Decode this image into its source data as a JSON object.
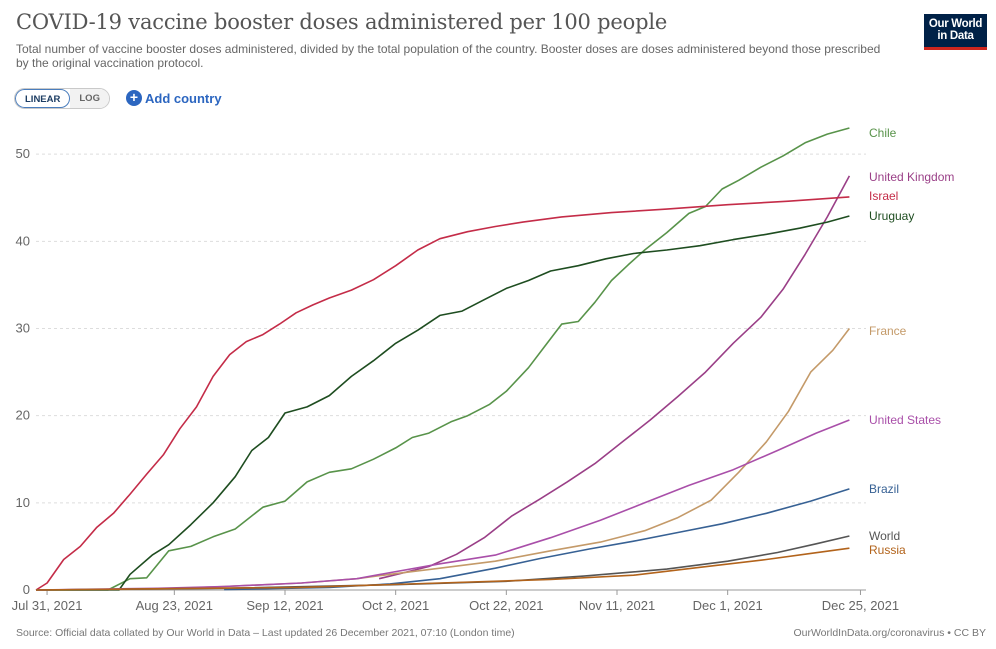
{
  "title": "COVID-19 vaccine booster doses administered per 100 people",
  "subtitle": "Total number of vaccine booster doses administered, divided by the total population of the country. Booster doses are doses administered beyond those prescribed by the original vaccination protocol.",
  "logo": {
    "line1": "Our World",
    "line2": "in Data"
  },
  "controls": {
    "linear_label": "LINEAR",
    "log_label": "LOG",
    "add_country_label": "Add country",
    "add_icon": "plus-circle-icon"
  },
  "footer": {
    "source": "Source: Official data collated by Our World in Data – Last updated 26 December 2021, 07:10 (London time)",
    "license": "OurWorldInData.org/coronavirus • CC BY"
  },
  "colors": {
    "grid": "#dddddd",
    "axis_text": "#666666",
    "brand": "#002147",
    "accent": "#ce261e"
  },
  "chart_data": {
    "type": "line",
    "title": "COVID-19 vaccine booster doses administered per 100 people",
    "xlabel": "",
    "ylabel": "",
    "xlim": [
      "2021-07-29",
      "2021-12-26"
    ],
    "ylim": [
      0,
      53
    ],
    "yticks": [
      0,
      10,
      20,
      30,
      40,
      50
    ],
    "xticks": [
      {
        "date": "2021-07-31",
        "label": "Jul 31, 2021"
      },
      {
        "date": "2021-08-23",
        "label": "Aug 23, 2021"
      },
      {
        "date": "2021-09-12",
        "label": "Sep 12, 2021"
      },
      {
        "date": "2021-10-02",
        "label": "Oct 2, 2021"
      },
      {
        "date": "2021-10-22",
        "label": "Oct 22, 2021"
      },
      {
        "date": "2021-11-11",
        "label": "Nov 11, 2021"
      },
      {
        "date": "2021-12-01",
        "label": "Dec 1, 2021"
      },
      {
        "date": "2021-12-25",
        "label": "Dec 25, 2021"
      }
    ],
    "grid": "horizontal",
    "legend": "right, labels at line ends",
    "series": [
      {
        "name": "Chile",
        "color": "#58934a",
        "points": [
          [
            "2021-07-30",
            0
          ],
          [
            "2021-08-11",
            0
          ],
          [
            "2021-08-15",
            1.3
          ],
          [
            "2021-08-18",
            1.4
          ],
          [
            "2021-08-22",
            4.5
          ],
          [
            "2021-08-26",
            5
          ],
          [
            "2021-08-30",
            6.1
          ],
          [
            "2021-09-03",
            7
          ],
          [
            "2021-09-08",
            9.5
          ],
          [
            "2021-09-12",
            10.2
          ],
          [
            "2021-09-16",
            12.4
          ],
          [
            "2021-09-20",
            13.5
          ],
          [
            "2021-09-24",
            13.9
          ],
          [
            "2021-09-28",
            15
          ],
          [
            "2021-10-02",
            16.3
          ],
          [
            "2021-10-05",
            17.5
          ],
          [
            "2021-10-08",
            18
          ],
          [
            "2021-10-12",
            19.3
          ],
          [
            "2021-10-15",
            20
          ],
          [
            "2021-10-19",
            21.3
          ],
          [
            "2021-10-22",
            22.8
          ],
          [
            "2021-10-26",
            25.5
          ],
          [
            "2021-10-29",
            28
          ],
          [
            "2021-11-01",
            30.5
          ],
          [
            "2021-11-04",
            30.8
          ],
          [
            "2021-11-07",
            33
          ],
          [
            "2021-11-10",
            35.5
          ],
          [
            "2021-11-13",
            37.3
          ],
          [
            "2021-11-16",
            39
          ],
          [
            "2021-11-20",
            41
          ],
          [
            "2021-11-24",
            43.2
          ],
          [
            "2021-11-27",
            44
          ],
          [
            "2021-11-30",
            46
          ],
          [
            "2021-12-03",
            47
          ],
          [
            "2021-12-07",
            48.5
          ],
          [
            "2021-12-11",
            49.8
          ],
          [
            "2021-12-15",
            51.3
          ],
          [
            "2021-12-19",
            52.3
          ],
          [
            "2021-12-23",
            53
          ]
        ]
      },
      {
        "name": "United Kingdom",
        "color": "#9a3f87",
        "points": [
          [
            "2021-09-29",
            1.3
          ],
          [
            "2021-10-03",
            1.9
          ],
          [
            "2021-10-08",
            2.7
          ],
          [
            "2021-10-13",
            4.1
          ],
          [
            "2021-10-18",
            6
          ],
          [
            "2021-10-23",
            8.5
          ],
          [
            "2021-10-28",
            10.4
          ],
          [
            "2021-11-02",
            12.4
          ],
          [
            "2021-11-07",
            14.5
          ],
          [
            "2021-11-12",
            17
          ],
          [
            "2021-11-17",
            19.5
          ],
          [
            "2021-11-22",
            22.2
          ],
          [
            "2021-11-27",
            25
          ],
          [
            "2021-12-02",
            28.3
          ],
          [
            "2021-12-07",
            31.3
          ],
          [
            "2021-12-11",
            34.5
          ],
          [
            "2021-12-15",
            38.5
          ],
          [
            "2021-12-19",
            42.8
          ],
          [
            "2021-12-23",
            47.5
          ]
        ]
      },
      {
        "name": "Israel",
        "color": "#c42c48",
        "points": [
          [
            "2021-07-29",
            0
          ],
          [
            "2021-07-31",
            0.8
          ],
          [
            "2021-08-03",
            3.5
          ],
          [
            "2021-08-06",
            5
          ],
          [
            "2021-08-09",
            7.2
          ],
          [
            "2021-08-12",
            8.8
          ],
          [
            "2021-08-15",
            11
          ],
          [
            "2021-08-18",
            13.3
          ],
          [
            "2021-08-21",
            15.5
          ],
          [
            "2021-08-24",
            18.5
          ],
          [
            "2021-08-27",
            21
          ],
          [
            "2021-08-30",
            24.5
          ],
          [
            "2021-09-02",
            27
          ],
          [
            "2021-09-05",
            28.5
          ],
          [
            "2021-09-08",
            29.3
          ],
          [
            "2021-09-11",
            30.5
          ],
          [
            "2021-09-14",
            31.8
          ],
          [
            "2021-09-17",
            32.7
          ],
          [
            "2021-09-20",
            33.5
          ],
          [
            "2021-09-24",
            34.4
          ],
          [
            "2021-09-28",
            35.6
          ],
          [
            "2021-10-02",
            37.2
          ],
          [
            "2021-10-06",
            39
          ],
          [
            "2021-10-10",
            40.3
          ],
          [
            "2021-10-15",
            41.1
          ],
          [
            "2021-10-20",
            41.7
          ],
          [
            "2021-10-25",
            42.2
          ],
          [
            "2021-11-01",
            42.8
          ],
          [
            "2021-11-10",
            43.3
          ],
          [
            "2021-11-20",
            43.7
          ],
          [
            "2021-12-01",
            44.2
          ],
          [
            "2021-12-12",
            44.6
          ],
          [
            "2021-12-23",
            45.1
          ]
        ]
      },
      {
        "name": "Uruguay",
        "color": "#1e4d20",
        "points": [
          [
            "2021-07-29",
            0
          ],
          [
            "2021-08-13",
            0
          ],
          [
            "2021-08-15",
            1.8
          ],
          [
            "2021-08-19",
            4
          ],
          [
            "2021-08-22",
            5.2
          ],
          [
            "2021-08-26",
            7.5
          ],
          [
            "2021-08-30",
            10
          ],
          [
            "2021-09-03",
            13
          ],
          [
            "2021-09-06",
            16
          ],
          [
            "2021-09-09",
            17.5
          ],
          [
            "2021-09-12",
            20.3
          ],
          [
            "2021-09-16",
            21
          ],
          [
            "2021-09-20",
            22.3
          ],
          [
            "2021-09-24",
            24.5
          ],
          [
            "2021-09-28",
            26.3
          ],
          [
            "2021-10-02",
            28.3
          ],
          [
            "2021-10-06",
            29.8
          ],
          [
            "2021-10-10",
            31.5
          ],
          [
            "2021-10-14",
            32
          ],
          [
            "2021-10-18",
            33.3
          ],
          [
            "2021-10-22",
            34.6
          ],
          [
            "2021-10-26",
            35.5
          ],
          [
            "2021-10-30",
            36.6
          ],
          [
            "2021-11-04",
            37.2
          ],
          [
            "2021-11-09",
            38
          ],
          [
            "2021-11-14",
            38.6
          ],
          [
            "2021-11-20",
            39
          ],
          [
            "2021-11-26",
            39.5
          ],
          [
            "2021-12-02",
            40.2
          ],
          [
            "2021-12-08",
            40.8
          ],
          [
            "2021-12-14",
            41.5
          ],
          [
            "2021-12-19",
            42.2
          ],
          [
            "2021-12-23",
            42.9
          ]
        ]
      },
      {
        "name": "France",
        "color": "#c49a69",
        "points": [
          [
            "2021-07-29",
            0
          ],
          [
            "2021-08-20",
            0.1
          ],
          [
            "2021-09-01",
            0.4
          ],
          [
            "2021-09-15",
            0.8
          ],
          [
            "2021-09-25",
            1.3
          ],
          [
            "2021-10-01",
            1.8
          ],
          [
            "2021-10-10",
            2.5
          ],
          [
            "2021-10-20",
            3.3
          ],
          [
            "2021-10-30",
            4.5
          ],
          [
            "2021-11-08",
            5.5
          ],
          [
            "2021-11-16",
            6.8
          ],
          [
            "2021-11-22",
            8.3
          ],
          [
            "2021-11-28",
            10.3
          ],
          [
            "2021-12-03",
            13.5
          ],
          [
            "2021-12-08",
            17
          ],
          [
            "2021-12-12",
            20.5
          ],
          [
            "2021-12-16",
            25
          ],
          [
            "2021-12-20",
            27.5
          ],
          [
            "2021-12-23",
            30
          ]
        ]
      },
      {
        "name": "United States",
        "color": "#a94fa9",
        "points": [
          [
            "2021-07-29",
            0
          ],
          [
            "2021-08-20",
            0.2
          ],
          [
            "2021-09-01",
            0.4
          ],
          [
            "2021-09-15",
            0.8
          ],
          [
            "2021-09-25",
            1.3
          ],
          [
            "2021-10-01",
            2
          ],
          [
            "2021-10-10",
            3
          ],
          [
            "2021-10-20",
            4
          ],
          [
            "2021-10-30",
            6
          ],
          [
            "2021-11-08",
            8
          ],
          [
            "2021-11-16",
            10
          ],
          [
            "2021-11-24",
            12
          ],
          [
            "2021-12-02",
            13.8
          ],
          [
            "2021-12-10",
            16
          ],
          [
            "2021-12-17",
            18
          ],
          [
            "2021-12-23",
            19.5
          ]
        ]
      },
      {
        "name": "Brazil",
        "color": "#376194",
        "points": [
          [
            "2021-09-01",
            0.05
          ],
          [
            "2021-09-20",
            0.3
          ],
          [
            "2021-10-01",
            0.7
          ],
          [
            "2021-10-10",
            1.3
          ],
          [
            "2021-10-20",
            2.5
          ],
          [
            "2021-10-28",
            3.6
          ],
          [
            "2021-11-06",
            4.7
          ],
          [
            "2021-11-14",
            5.6
          ],
          [
            "2021-11-22",
            6.6
          ],
          [
            "2021-11-30",
            7.6
          ],
          [
            "2021-12-08",
            8.8
          ],
          [
            "2021-12-16",
            10.2
          ],
          [
            "2021-12-23",
            11.6
          ]
        ]
      },
      {
        "name": "World",
        "color": "#555555",
        "points": [
          [
            "2021-07-29",
            0
          ],
          [
            "2021-09-01",
            0.2
          ],
          [
            "2021-10-01",
            0.6
          ],
          [
            "2021-10-22",
            1
          ],
          [
            "2021-11-05",
            1.6
          ],
          [
            "2021-11-20",
            2.4
          ],
          [
            "2021-12-01",
            3.3
          ],
          [
            "2021-12-10",
            4.3
          ],
          [
            "2021-12-17",
            5.3
          ],
          [
            "2021-12-23",
            6.2
          ]
        ]
      },
      {
        "name": "Russia",
        "color": "#b2631b",
        "points": [
          [
            "2021-07-29",
            0
          ],
          [
            "2021-09-15",
            0.3
          ],
          [
            "2021-10-10",
            0.8
          ],
          [
            "2021-10-30",
            1.2
          ],
          [
            "2021-11-14",
            1.7
          ],
          [
            "2021-11-26",
            2.6
          ],
          [
            "2021-12-08",
            3.5
          ],
          [
            "2021-12-16",
            4.2
          ],
          [
            "2021-12-23",
            4.8
          ]
        ]
      }
    ],
    "labels": [
      {
        "series": "Chile",
        "text": "Chile",
        "value": 52.4
      },
      {
        "series": "United Kingdom",
        "text": "United Kingdom",
        "value": 47.4
      },
      {
        "series": "Israel",
        "text": "Israel",
        "value": 45.2
      },
      {
        "series": "Uruguay",
        "text": "Uruguay",
        "value": 42.9
      },
      {
        "series": "France",
        "text": "France",
        "value": 29.7
      },
      {
        "series": "United States",
        "text": "United States",
        "value": 19.5
      },
      {
        "series": "Brazil",
        "text": "Brazil",
        "value": 11.6
      },
      {
        "series": "World",
        "text": "World",
        "value": 6.2
      },
      {
        "series": "Russia",
        "text": "Russia",
        "value": 4.6
      }
    ]
  }
}
